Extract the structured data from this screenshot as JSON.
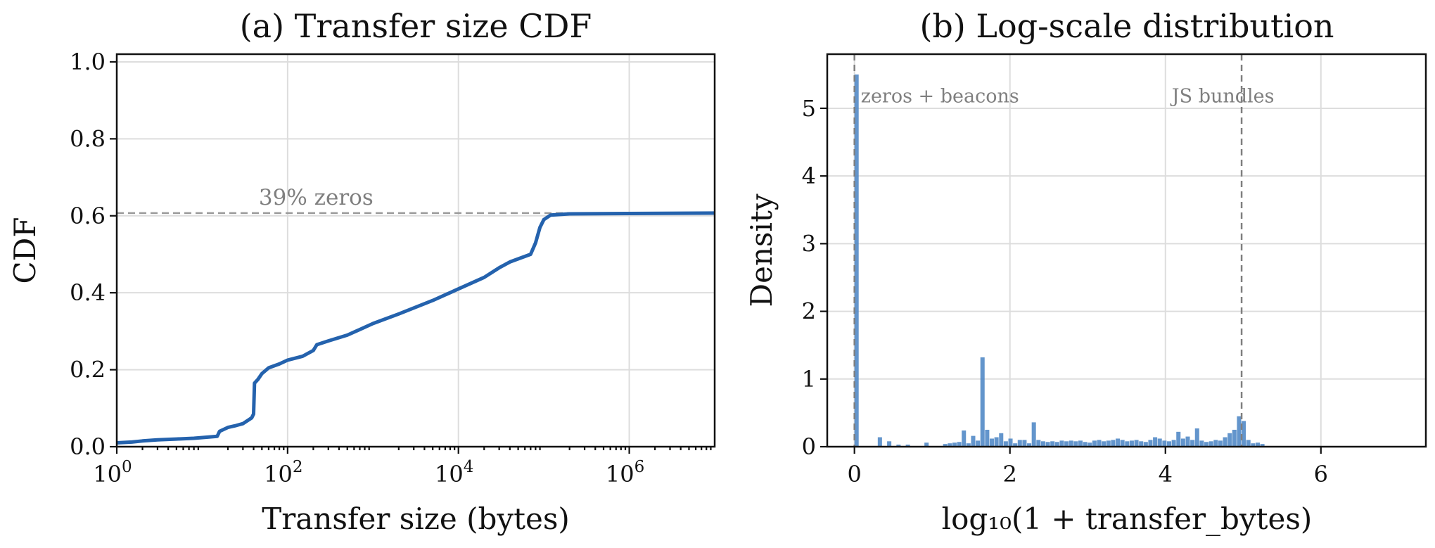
{
  "chart_data": [
    {
      "type": "line",
      "title": "(a) Transfer size CDF",
      "xlabel": "Transfer size (bytes)",
      "ylabel": "CDF",
      "x_scale": "log",
      "xlim": [
        1,
        10000000
      ],
      "ylim": [
        0,
        1.02
      ],
      "x_ticks": [
        {
          "label": "10",
          "exp": "0"
        },
        {
          "label": "10",
          "exp": "2"
        },
        {
          "label": "10",
          "exp": "4"
        },
        {
          "label": "10",
          "exp": "6"
        }
      ],
      "y_ticks": [
        "0.0",
        "0.2",
        "0.4",
        "0.6",
        "0.8",
        "1.0"
      ],
      "grid": true,
      "color": "#2462ad",
      "series": [
        {
          "x": [
            1,
            1.5,
            2,
            3,
            5,
            8,
            12,
            15,
            16,
            20,
            25,
            30,
            38,
            40,
            41,
            45,
            50,
            60,
            80,
            100,
            150,
            200,
            220,
            300,
            500,
            1000,
            2000,
            5000,
            10000,
            20000,
            30000,
            40000,
            70000,
            80000,
            90000,
            100000,
            120000,
            200000,
            1000000,
            10000000
          ],
          "y": [
            0.01,
            0.012,
            0.015,
            0.018,
            0.02,
            0.022,
            0.025,
            0.027,
            0.04,
            0.05,
            0.055,
            0.06,
            0.075,
            0.085,
            0.165,
            0.175,
            0.19,
            0.205,
            0.215,
            0.225,
            0.235,
            0.25,
            0.265,
            0.275,
            0.29,
            0.32,
            0.345,
            0.38,
            0.41,
            0.44,
            0.465,
            0.48,
            0.5,
            0.53,
            0.57,
            0.59,
            0.602,
            0.605,
            0.606,
            0.607
          ]
        }
      ],
      "annotations": [
        {
          "text": "39% zeros",
          "y": 0.607
        }
      ]
    },
    {
      "type": "bar",
      "title": "(b) Log-scale distribution",
      "xlabel": "log₁₀(1 + transfer_bytes)",
      "ylabel": "Density",
      "xlim": [
        -0.35,
        7.35
      ],
      "ylim": [
        0,
        5.8
      ],
      "x_ticks": [
        "0",
        "2",
        "4",
        "6"
      ],
      "y_ticks": [
        "0",
        "1",
        "2",
        "3",
        "4",
        "5"
      ],
      "grid": true,
      "color": "#4d86c5",
      "bin_width": 0.06,
      "bins": [
        [
          0.0,
          5.5
        ],
        [
          0.3,
          0.14
        ],
        [
          0.42,
          0.08
        ],
        [
          0.54,
          0.03
        ],
        [
          0.66,
          0.03
        ],
        [
          0.9,
          0.06
        ],
        [
          1.14,
          0.04
        ],
        [
          1.2,
          0.05
        ],
        [
          1.26,
          0.06
        ],
        [
          1.32,
          0.07
        ],
        [
          1.38,
          0.24
        ],
        [
          1.44,
          0.05
        ],
        [
          1.5,
          0.16
        ],
        [
          1.56,
          0.09
        ],
        [
          1.62,
          1.32
        ],
        [
          1.68,
          0.25
        ],
        [
          1.74,
          0.12
        ],
        [
          1.8,
          0.14
        ],
        [
          1.86,
          0.2
        ],
        [
          1.92,
          0.08
        ],
        [
          1.98,
          0.12
        ],
        [
          2.04,
          0.05
        ],
        [
          2.1,
          0.1
        ],
        [
          2.16,
          0.1
        ],
        [
          2.22,
          0.05
        ],
        [
          2.28,
          0.36
        ],
        [
          2.34,
          0.1
        ],
        [
          2.4,
          0.08
        ],
        [
          2.46,
          0.07
        ],
        [
          2.52,
          0.08
        ],
        [
          2.58,
          0.07
        ],
        [
          2.64,
          0.09
        ],
        [
          2.7,
          0.08
        ],
        [
          2.76,
          0.09
        ],
        [
          2.82,
          0.08
        ],
        [
          2.88,
          0.09
        ],
        [
          2.94,
          0.07
        ],
        [
          3.0,
          0.06
        ],
        [
          3.06,
          0.09
        ],
        [
          3.12,
          0.1
        ],
        [
          3.18,
          0.08
        ],
        [
          3.24,
          0.09
        ],
        [
          3.3,
          0.1
        ],
        [
          3.36,
          0.12
        ],
        [
          3.42,
          0.1
        ],
        [
          3.48,
          0.08
        ],
        [
          3.54,
          0.09
        ],
        [
          3.6,
          0.1
        ],
        [
          3.66,
          0.08
        ],
        [
          3.72,
          0.07
        ],
        [
          3.78,
          0.1
        ],
        [
          3.84,
          0.14
        ],
        [
          3.9,
          0.12
        ],
        [
          3.96,
          0.09
        ],
        [
          4.02,
          0.08
        ],
        [
          4.08,
          0.1
        ],
        [
          4.14,
          0.22
        ],
        [
          4.2,
          0.12
        ],
        [
          4.26,
          0.15
        ],
        [
          4.32,
          0.1
        ],
        [
          4.38,
          0.27
        ],
        [
          4.44,
          0.09
        ],
        [
          4.5,
          0.07
        ],
        [
          4.56,
          0.08
        ],
        [
          4.62,
          0.1
        ],
        [
          4.68,
          0.09
        ],
        [
          4.74,
          0.14
        ],
        [
          4.8,
          0.2
        ],
        [
          4.86,
          0.25
        ],
        [
          4.92,
          0.45
        ],
        [
          4.98,
          0.38
        ],
        [
          5.04,
          0.1
        ],
        [
          5.1,
          0.05
        ],
        [
          5.16,
          0.06
        ],
        [
          5.22,
          0.04
        ]
      ],
      "vlines": [
        0,
        4.98
      ],
      "annotations": [
        {
          "text": "zeros + beacons",
          "x": 0.1,
          "y": 5.17
        },
        {
          "text": "JS bundles",
          "x": 4.1,
          "y": 5.17
        }
      ]
    }
  ]
}
